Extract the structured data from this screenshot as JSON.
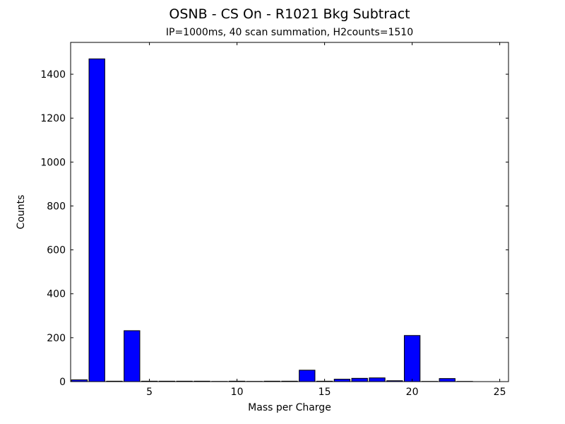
{
  "chart_data": {
    "type": "bar",
    "title": "OSNB - CS On - R1021 Bkg Subtract",
    "subtitle": "IP=1000ms, 40 scan summation, H2counts=1510",
    "xlabel": "Mass per Charge",
    "ylabel": "Counts",
    "x": [
      1,
      2,
      3,
      4,
      5,
      6,
      7,
      8,
      9,
      10,
      11,
      12,
      13,
      14,
      15,
      16,
      17,
      18,
      19,
      20,
      21,
      22,
      23,
      24,
      25
    ],
    "values": [
      8,
      1470,
      2,
      232,
      2,
      2,
      2,
      2,
      1,
      2,
      1,
      2,
      2,
      52,
      2,
      11,
      15,
      17,
      4,
      210,
      1,
      14,
      1,
      0,
      0
    ],
    "bar_width": 0.9,
    "bar_color": "#0000ff",
    "bar_edge_color": "#000000",
    "axis_color": "#000000",
    "background_color": "#ffffff",
    "xlim": [
      0.5,
      25.5
    ],
    "ylim": [
      0,
      1545
    ],
    "xticks": [
      5,
      10,
      15,
      20,
      25
    ],
    "yticks": [
      0,
      200,
      400,
      600,
      800,
      1000,
      1200,
      1400
    ],
    "grid": "off",
    "legend": "none",
    "tick_direction": "in"
  }
}
